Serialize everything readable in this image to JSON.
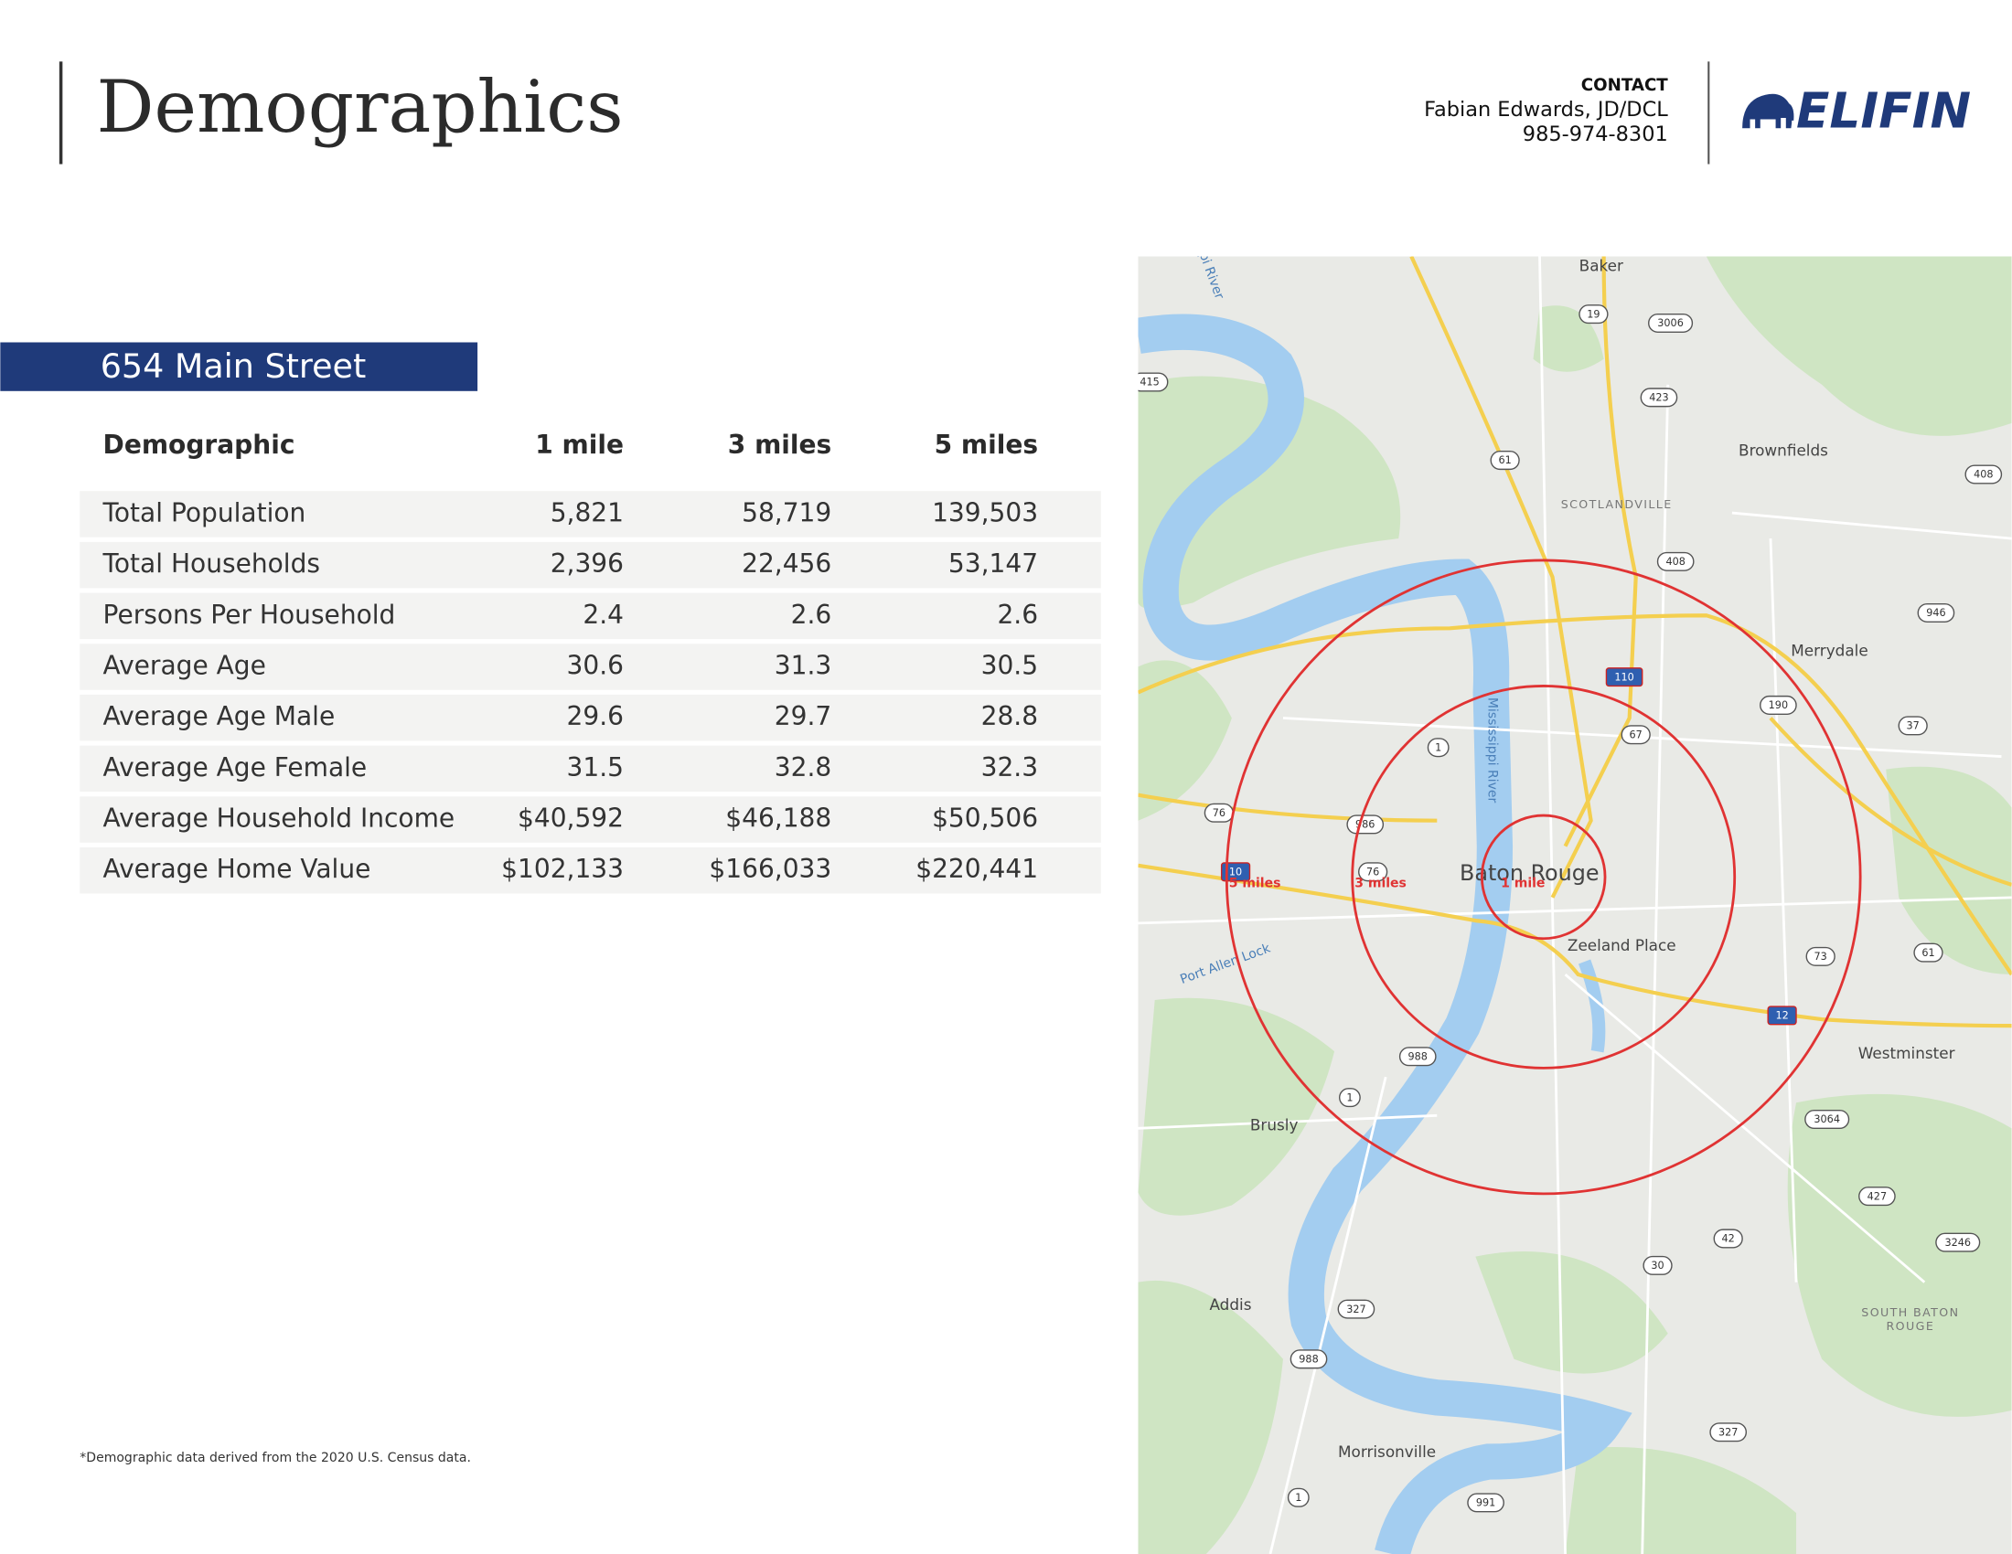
{
  "header": {
    "title": "Demographics",
    "contact_label": "CONTACT",
    "contact_name": "Fabian Edwards, JD/DCL",
    "contact_phone": "985-974-8301",
    "logo": "ELIFIN"
  },
  "section": {
    "title": "654 Main Street"
  },
  "table": {
    "columns": [
      "Demographic",
      "1 mile",
      "3 miles",
      "5 miles"
    ],
    "rows": [
      [
        "Total Population",
        "5,821",
        "58,719",
        "139,503"
      ],
      [
        "Total Households",
        "2,396",
        "22,456",
        "53,147"
      ],
      [
        "Persons Per Household",
        "2.4",
        "2.6",
        "2.6"
      ],
      [
        "Average Age",
        "30.6",
        "31.3",
        "30.5"
      ],
      [
        "Average Age Male",
        "29.6",
        "29.7",
        "28.8"
      ],
      [
        "Average Age Female",
        "31.5",
        "32.8",
        "32.3"
      ],
      [
        "Average Household Income",
        "$40,592",
        "$46,188",
        "$50,506"
      ],
      [
        "Average Home Value",
        "$102,133",
        "$166,033",
        "$220,441"
      ]
    ]
  },
  "footnote": "*Demographic data derived from the 2020 U.S. Census data.",
  "map": {
    "places": [
      "Baker",
      "Brownfields",
      "SCOTLANDVILLE",
      "Merrydale",
      "Baton Rouge",
      "Zeeland Place",
      "Westminster",
      "Brusly",
      "Addis",
      "Morrisonville",
      "SOUTH BATON",
      "ROUGE"
    ],
    "water": [
      "Mississippi River",
      "Port Allen Lock",
      "pi River"
    ],
    "rings": [
      "1 mile",
      "3 miles",
      "5 miles"
    ],
    "shields": [
      "19",
      "3006",
      "423",
      "61",
      "408",
      "415",
      "408",
      "946",
      "110",
      "190",
      "37",
      "67",
      "1",
      "76",
      "986",
      "76",
      "10",
      "73",
      "61",
      "12",
      "988",
      "1",
      "3064",
      "427",
      "42",
      "3246",
      "30",
      "327",
      "988",
      "327",
      "1",
      "991"
    ]
  }
}
